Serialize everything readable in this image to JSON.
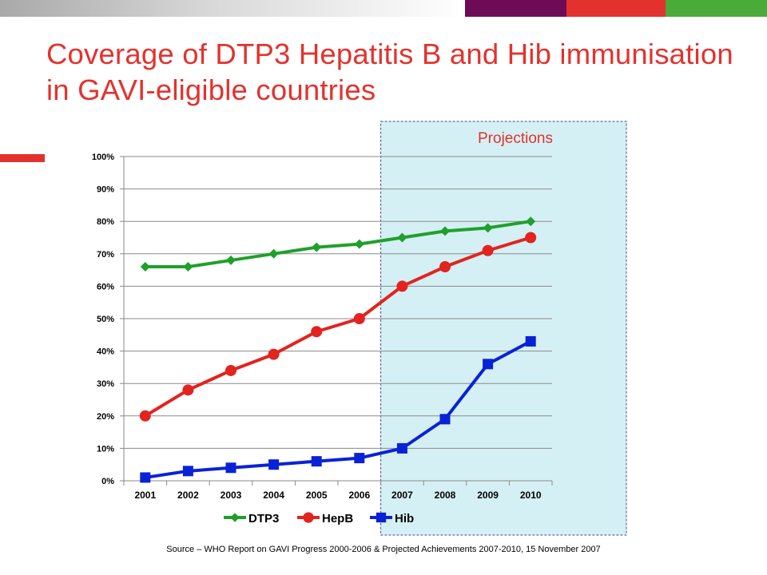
{
  "title": "Coverage of DTP3 Hepatitis B and Hib immunisation in GAVI-eligible countries",
  "source": "Source – WHO Report on GAVI Progress 2000-2006 & Projected Achievements 2007-2010, 15 November 2007",
  "colors": {
    "title": "#e3322d",
    "bar_purple": "#6e0b57",
    "bar_red": "#e3322d",
    "bar_green": "#4aab38",
    "projection_fill": "#d5f0f4",
    "projection_border": "#3a4f8f"
  },
  "chart_data": {
    "type": "line",
    "x": [
      "2001",
      "2002",
      "2003",
      "2004",
      "2005",
      "2006",
      "2007",
      "2008",
      "2009",
      "2010"
    ],
    "ylim": [
      0,
      100
    ],
    "yticks": [
      "0%",
      "10%",
      "20%",
      "30%",
      "40%",
      "50%",
      "60%",
      "70%",
      "80%",
      "90%",
      "100%"
    ],
    "projection_label": "Projections",
    "projection_start": "2007",
    "grid": true,
    "legend": "bottom",
    "series": [
      {
        "name": "DTP3",
        "color": "#1fa02c",
        "marker": "diamond",
        "values": [
          66,
          66,
          68,
          70,
          72,
          73,
          75,
          77,
          78,
          80
        ]
      },
      {
        "name": "HepB",
        "color": "#e3231f",
        "marker": "circle",
        "values": [
          20,
          28,
          34,
          39,
          46,
          50,
          60,
          66,
          71,
          75
        ]
      },
      {
        "name": "Hib",
        "color": "#0a22d6",
        "marker": "square",
        "values": [
          1,
          3,
          4,
          5,
          6,
          7,
          10,
          19,
          36,
          43
        ]
      }
    ]
  }
}
